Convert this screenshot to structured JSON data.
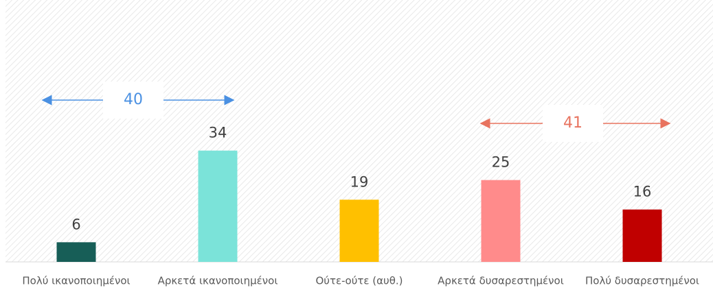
{
  "chart_data": {
    "type": "bar",
    "categories": [
      "Πολύ ικανοποιημένοι",
      "Αρκετά ικανοποιημένοι",
      "Ούτε-ούτε (αυθ.)",
      "Αρκετά δυσαρεστημένοι",
      "Πολύ δυσαρεστημένοι"
    ],
    "values": [
      6,
      34,
      19,
      25,
      16
    ],
    "colors": [
      "#175e57",
      "#7be3d9",
      "#ffc000",
      "#ff8b8b",
      "#c00000"
    ],
    "ylim": [
      0,
      80
    ],
    "annotations": [
      {
        "text": "40",
        "color": "#4a90e2"
      },
      {
        "text": "41",
        "color": "#e8735f"
      }
    ]
  }
}
